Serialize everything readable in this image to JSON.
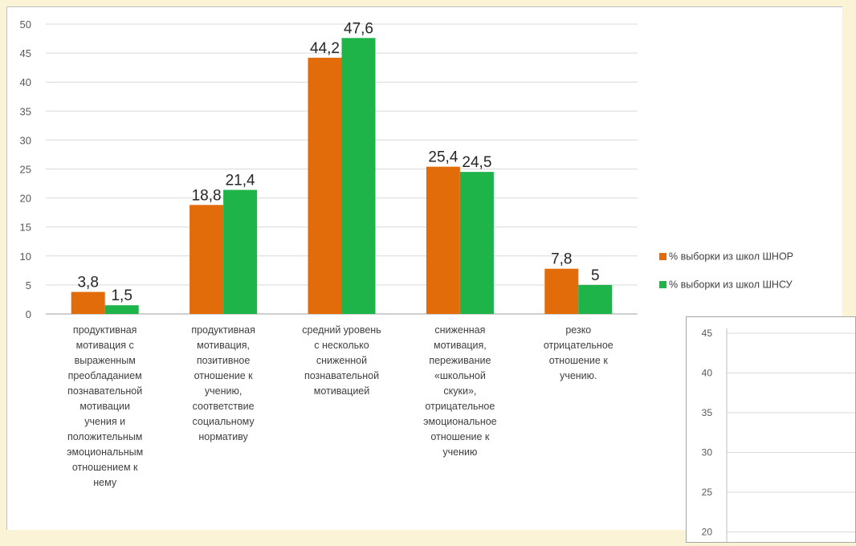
{
  "chart_data": {
    "type": "bar",
    "categories": [
      "продуктивная мотивация с выраженным преобладанием познавательной мотивации учения и положительным эмоциональным отношением к нему",
      "продуктивная мотивация, позитивное отношение к учению, соответствие социальному нормативу",
      "средний уровень с несколько сниженной познавательной мотивацией",
      "сниженная мотивация, переживание «школьной скуки», отрицательное эмоциональное отношение к учению",
      "резко отрицательное отношение к учению."
    ],
    "category_lines": [
      [
        "продуктивная",
        "мотивация с",
        "выраженным",
        "преобладанием",
        "познавательной",
        "мотивации",
        "учения и",
        "положительным",
        "эмоциональным",
        "отношением к",
        "нему"
      ],
      [
        "продуктивная",
        "мотивация,",
        "позитивное",
        "отношение к",
        "учению,",
        "соответствие",
        "социальному",
        "нормативу"
      ],
      [
        "средний уровень",
        "с несколько",
        "сниженной",
        "познавательной",
        "мотивацией"
      ],
      [
        "сниженная",
        "мотивация,",
        "переживание",
        "«школьной",
        "скуки»,",
        "отрицательное",
        "эмоциональное",
        "отношение к",
        "учению"
      ],
      [
        "резко",
        "отрицательное",
        "отношение к",
        "учению."
      ]
    ],
    "series": [
      {
        "name": "% выборки из школ ШНОР",
        "color": "#e36c0a",
        "values": [
          3.8,
          18.8,
          44.2,
          25.4,
          7.8
        ],
        "labels": [
          "3,8",
          "18,8",
          "44,2",
          "25,4",
          "7,8"
        ]
      },
      {
        "name": "% выборки из школ ШНСУ",
        "color": "#1fb44a",
        "values": [
          1.5,
          21.4,
          47.6,
          24.5,
          5
        ],
        "labels": [
          "1,5",
          "21,4",
          "47,6",
          "24,5",
          "5"
        ]
      }
    ],
    "ylim": [
      0,
      50
    ],
    "yticks": [
      0,
      5,
      10,
      15,
      20,
      25,
      30,
      35,
      40,
      45,
      50
    ],
    "grid": true,
    "legend_position": "right",
    "title": "",
    "xlabel": "",
    "ylabel": ""
  },
  "inset_chart": {
    "type": "bar",
    "ylim": [
      20,
      45
    ],
    "yticks": [
      45,
      40,
      35,
      30,
      25,
      20
    ],
    "grid": true
  }
}
